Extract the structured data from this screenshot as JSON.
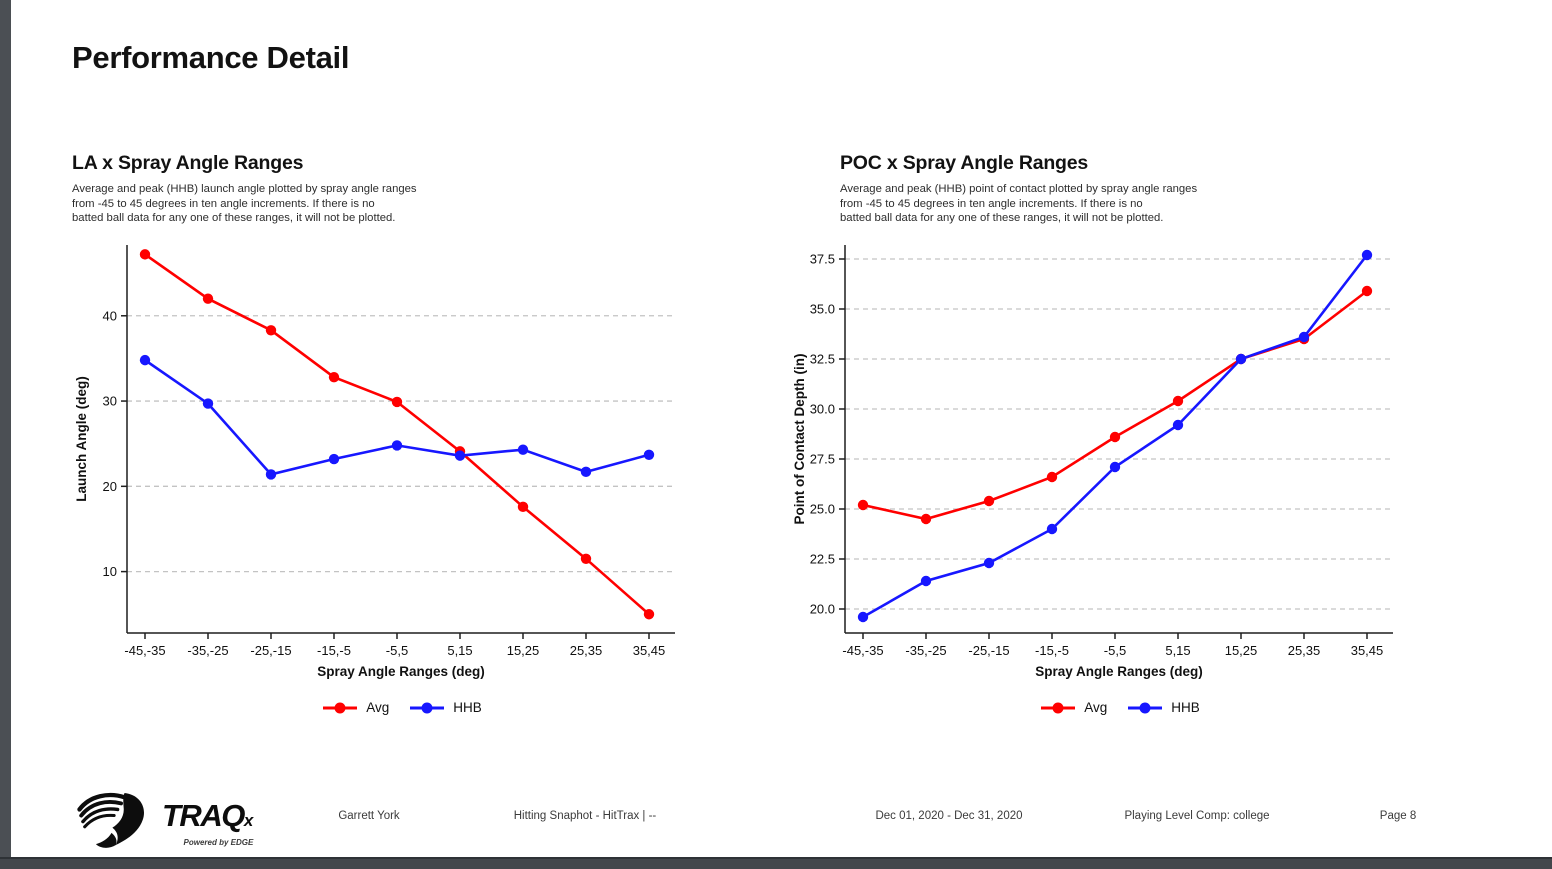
{
  "page": {
    "title": "Performance Detail"
  },
  "chart_data": [
    {
      "type": "line",
      "title": "LA x Spray Angle Ranges",
      "subtitle_lines": [
        "Average and peak (HHB) launch angle plotted by spray angle ranges",
        "from -45 to 45 degrees in ten angle increments. If there is no",
        "batted ball data for any one of these ranges, it will not be plotted."
      ],
      "xlabel": "Spray Angle Ranges (deg)",
      "ylabel": "Launch Angle (deg)",
      "categories": [
        "-45,-35",
        "-35,-25",
        "-25,-15",
        "-15,-5",
        "-5,5",
        "5,15",
        "15,25",
        "25,35",
        "35,45"
      ],
      "series": [
        {
          "name": "Avg",
          "color": "#ff0000",
          "values": [
            47.2,
            42.0,
            38.3,
            32.8,
            29.9,
            24.1,
            17.6,
            11.5,
            5.0
          ]
        },
        {
          "name": "HHB",
          "color": "#1717ff",
          "values": [
            34.8,
            29.7,
            21.4,
            23.2,
            24.8,
            23.6,
            24.3,
            21.7,
            23.7
          ]
        }
      ],
      "yticks": [
        40,
        30,
        20,
        10
      ],
      "ytick_labels": [
        "40",
        "30",
        "20",
        "10"
      ],
      "ylim": [
        2.8,
        48.3
      ],
      "grid": "horizontal-dashed",
      "legend_position": "bottom"
    },
    {
      "type": "line",
      "title": "POC x Spray Angle Ranges",
      "subtitle_lines": [
        "Average and peak (HHB) point of contact plotted by spray angle ranges",
        "from -45 to 45 degrees in ten angle increments. If there is no",
        "batted ball data for any one of these ranges, it will not be plotted."
      ],
      "xlabel": "Spray Angle Ranges (deg)",
      "ylabel": "Point of Contact Depth (in)",
      "categories": [
        "-45,-35",
        "-35,-25",
        "-25,-15",
        "-15,-5",
        "-5,5",
        "5,15",
        "15,25",
        "25,35",
        "35,45"
      ],
      "series": [
        {
          "name": "Avg",
          "color": "#ff0000",
          "values": [
            25.2,
            24.5,
            25.4,
            26.6,
            28.6,
            30.4,
            32.5,
            33.5,
            35.9
          ]
        },
        {
          "name": "HHB",
          "color": "#1717ff",
          "values": [
            19.6,
            21.4,
            22.3,
            24.0,
            27.1,
            29.2,
            32.5,
            33.6,
            37.7
          ]
        }
      ],
      "yticks": [
        37.5,
        35.0,
        32.5,
        30.0,
        27.5,
        25.0,
        22.5,
        20.0
      ],
      "ytick_labels": [
        "37.5",
        "35.0",
        "32.5",
        "30.0",
        "27.5",
        "25.0",
        "22.5",
        "20.0"
      ],
      "ylim": [
        18.8,
        38.2
      ],
      "grid": "horizontal-dashed",
      "legend_position": "bottom"
    }
  ],
  "footer": {
    "player_name": "Garrett York",
    "report_name": "Hitting Snaphot - HitTrax | --",
    "date_range": "Dec 01, 2020 - Dec 31, 2020",
    "comp_level": "Playing Level Comp: college",
    "page_label": "Page 8",
    "logo": {
      "brand": "TRAQ",
      "brand_sub": "x",
      "tagline": "Powered by EDGE"
    }
  }
}
